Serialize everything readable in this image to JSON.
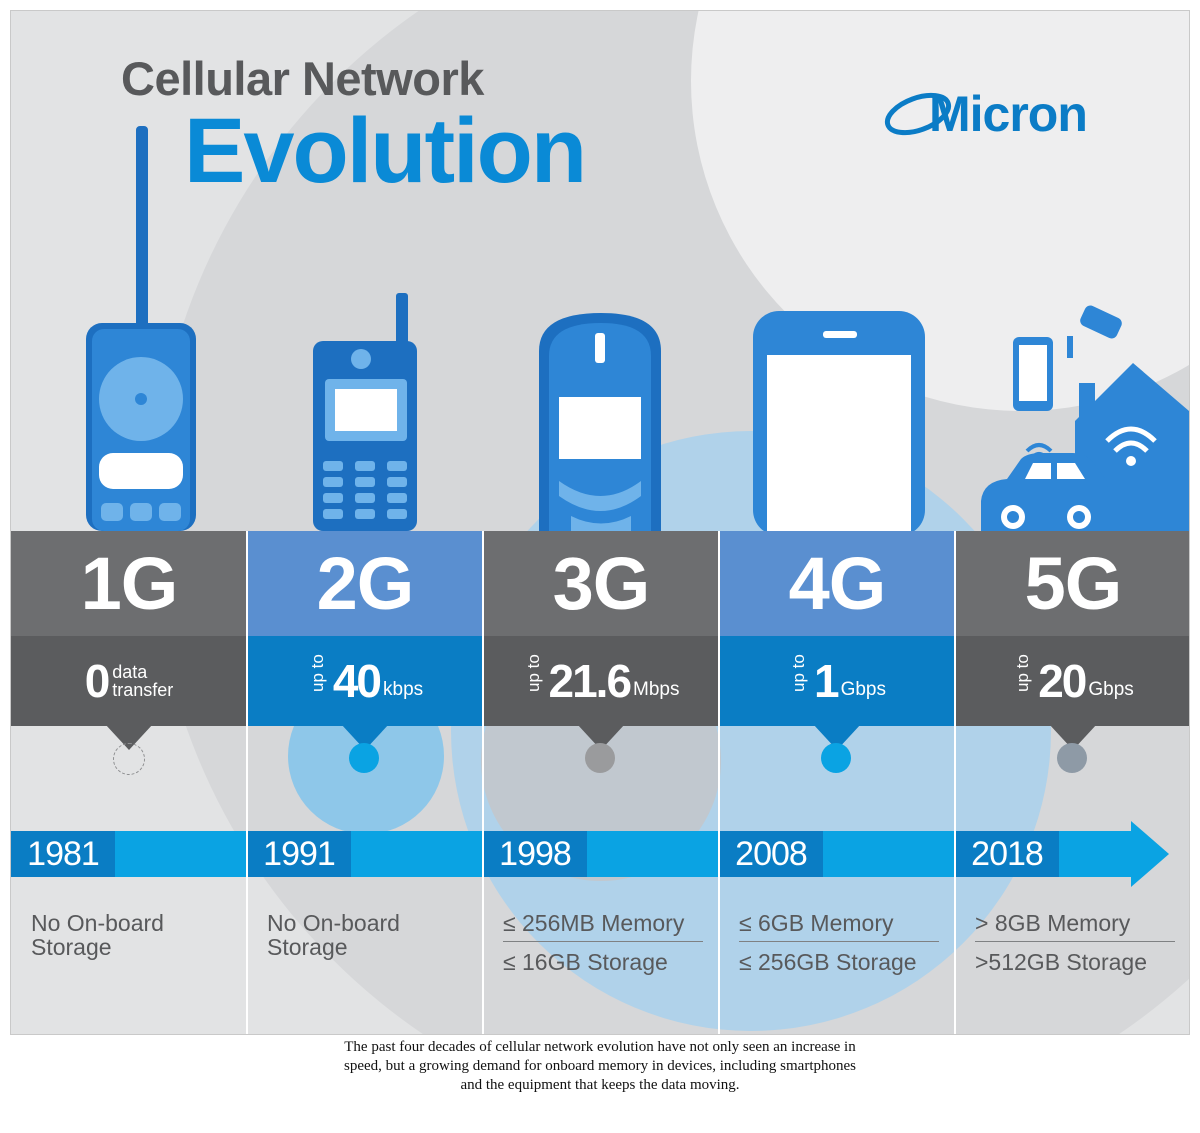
{
  "title": {
    "line1": "Cellular Network",
    "line2": "Evolution"
  },
  "logo": {
    "text": "Micron",
    "color": "#0b7cc6"
  },
  "colors": {
    "gray_band": "#6d6e70",
    "blue_band": "#5a8fd0",
    "speed_gray": "#5b5c5e",
    "speed_blue": "#0a7dc4",
    "timeline": "#0aa3e3",
    "year_box": "#0a7dc4",
    "device_blue": "#2e86d6"
  },
  "generations": [
    {
      "name": "1G",
      "speed_value": "0",
      "speed_text1": "data",
      "speed_text2": "transfer",
      "year": "1981",
      "storage": [
        "No On-board",
        "Storage"
      ],
      "memory": "",
      "storage2": ""
    },
    {
      "name": "2G",
      "speed_prefix": "up to",
      "speed_value": "40",
      "speed_unit": "kbps",
      "year": "1991",
      "storage": [
        "No On-board",
        "Storage"
      ],
      "memory": "",
      "storage2": ""
    },
    {
      "name": "3G",
      "speed_prefix": "up to",
      "speed_value": "21.6",
      "speed_unit": "Mbps",
      "year": "1998",
      "memory": "≤ 256MB Memory",
      "storage2": "≤ 16GB Storage"
    },
    {
      "name": "4G",
      "speed_prefix": "up to",
      "speed_value": "1",
      "speed_unit": "Gbps",
      "year": "2008",
      "memory": "≤ 6GB Memory",
      "storage2": "≤ 256GB Storage"
    },
    {
      "name": "5G",
      "speed_prefix": "up to",
      "speed_value": "20",
      "speed_unit": "Gbps",
      "year": "2018",
      "memory": "> 8GB Memory",
      "storage2": ">512GB Storage"
    }
  ],
  "device_icons": [
    "brick-phone-icon",
    "mobile-phone-icon",
    "candybar-phone-icon",
    "smartphone-icon",
    "iot-devices-icon"
  ],
  "caption": "The past four decades of cellular network evolution have not only seen an increase in speed, but a growing demand for onboard memory in devices, including smartphones and the equipment that keeps the data moving."
}
